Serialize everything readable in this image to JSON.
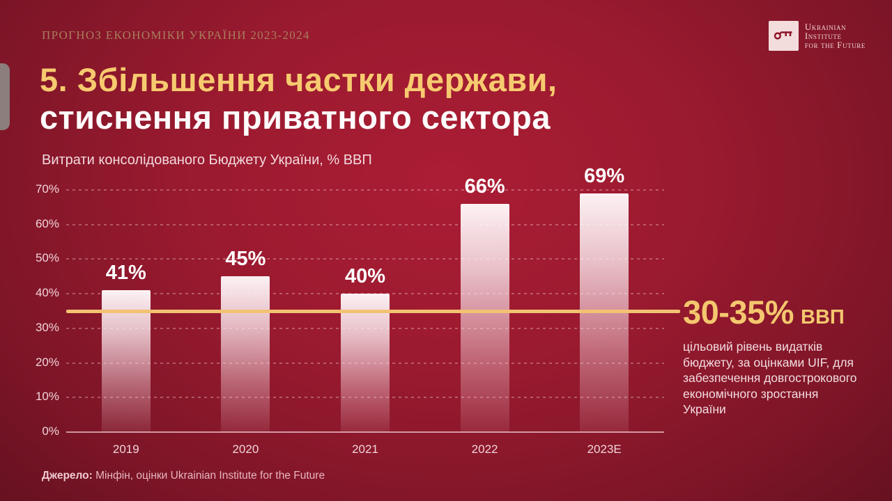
{
  "header": {
    "eyebrow": "ПРОГНОЗ ЕКОНОМІКИ УКРАЇНИ 2023-2024",
    "logo": {
      "line1": "Ukrainian",
      "line2": "Institute",
      "line3": "for the Future",
      "icon": "key-icon"
    }
  },
  "title": {
    "line1": "5. Збільшення частки держави,",
    "line2": "стиснення приватного сектора"
  },
  "chart_data": {
    "type": "bar",
    "title": "Витрати консолідованого Бюджету України, % ВВП",
    "categories": [
      "2019",
      "2020",
      "2021",
      "2022",
      "2023E"
    ],
    "values": [
      41,
      45,
      40,
      66,
      69
    ],
    "value_suffix": "%",
    "ylabel": "",
    "xlabel": "",
    "ylim": [
      0,
      70
    ],
    "ytick_step": 10,
    "ytick_suffix": "%",
    "grid": "horizontal-dashed",
    "legend": "none",
    "target_line": {
      "value": 35,
      "color": "#f3c273"
    }
  },
  "annotation": {
    "value": "30-35%",
    "unit": "ВВП",
    "body": "цільовий рівень видатків\nбюджету, за оцінками UIF, для\nзабезпечення довгострокового\nекономічного зростання\nУкраїни"
  },
  "source": {
    "label": "Джерело:",
    "text": " Мінфін, оцінки Ukrainian Institute for the Future"
  },
  "colors": {
    "background_center": "#ab1d34",
    "background_edge": "#470b15",
    "accent_gold": "#f4c76f",
    "target_line_gold": "#f3c273",
    "bar_fill_top": "#fff8fa",
    "text_pink": "#f2dade",
    "eyebrow_tan": "#a97f5e"
  }
}
